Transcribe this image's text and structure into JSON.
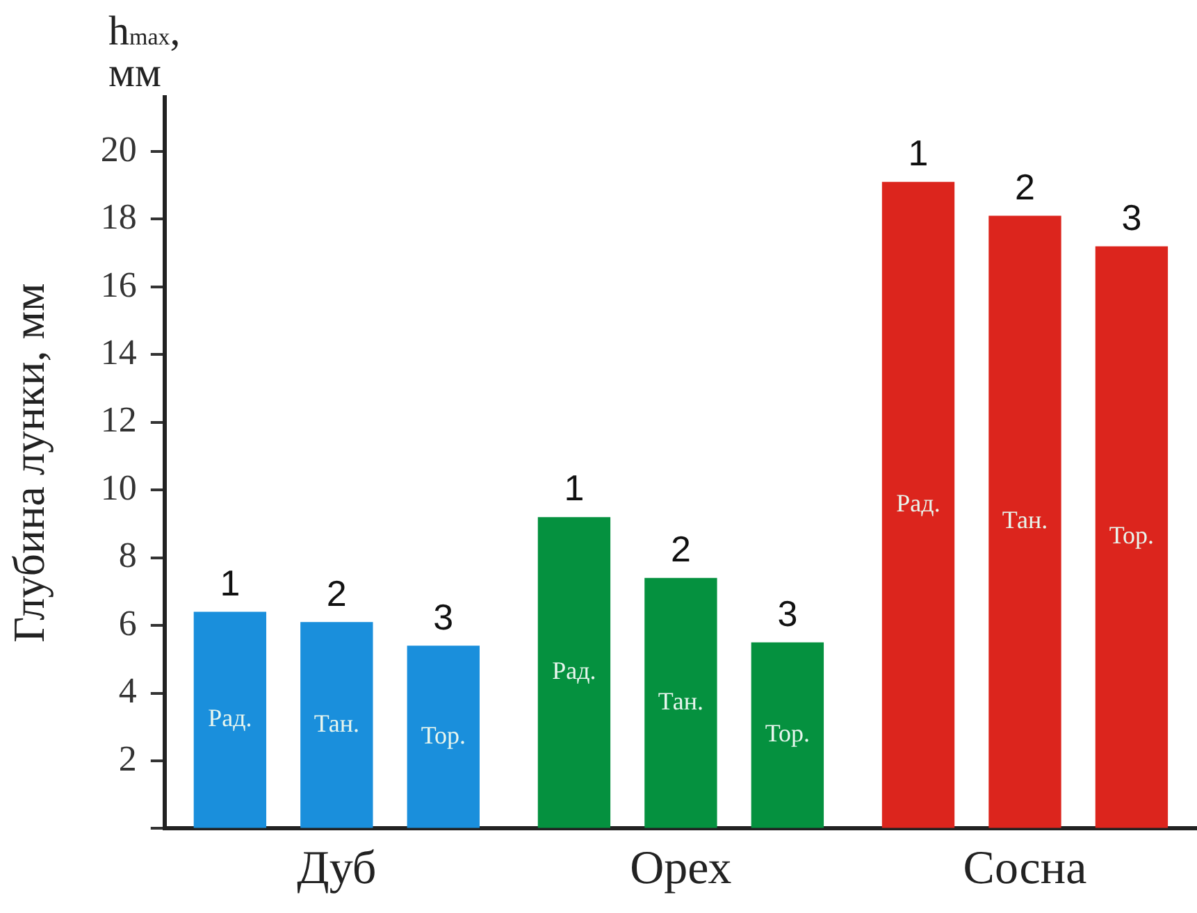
{
  "chart_data": {
    "type": "bar",
    "ylabel": "Глубина лунки, мм",
    "annotations": [
      "h$_{max}$, мм",
      "1",
      "2",
      "3",
      "1",
      "2",
      "3",
      "1",
      "2",
      "3"
    ],
    "categories": [
      "Дуб",
      "Орех",
      "Сосна"
    ],
    "series": [
      {
        "name": "Рад.",
        "colors": [
          "#1a8fdc",
          "#05913f",
          "#dc251d"
        ],
        "values": [
          6.4,
          9.2,
          19.1
        ]
      },
      {
        "name": "Тан.",
        "colors": [
          "#1a8fdc",
          "#05913f",
          "#dc251d"
        ],
        "values": [
          6.1,
          7.4,
          18.1
        ]
      },
      {
        "name": "Тор.",
        "colors": [
          "#1a8fdc",
          "#05913f",
          "#dc251d"
        ],
        "values": [
          5.4,
          5.5,
          17.2
        ]
      }
    ],
    "ylim": [
      0,
      21.6
    ],
    "yticks": [
      {
        "value": 0,
        "label": null
      },
      2,
      4,
      6,
      8,
      10,
      12,
      14,
      16,
      18,
      20
    ]
  }
}
